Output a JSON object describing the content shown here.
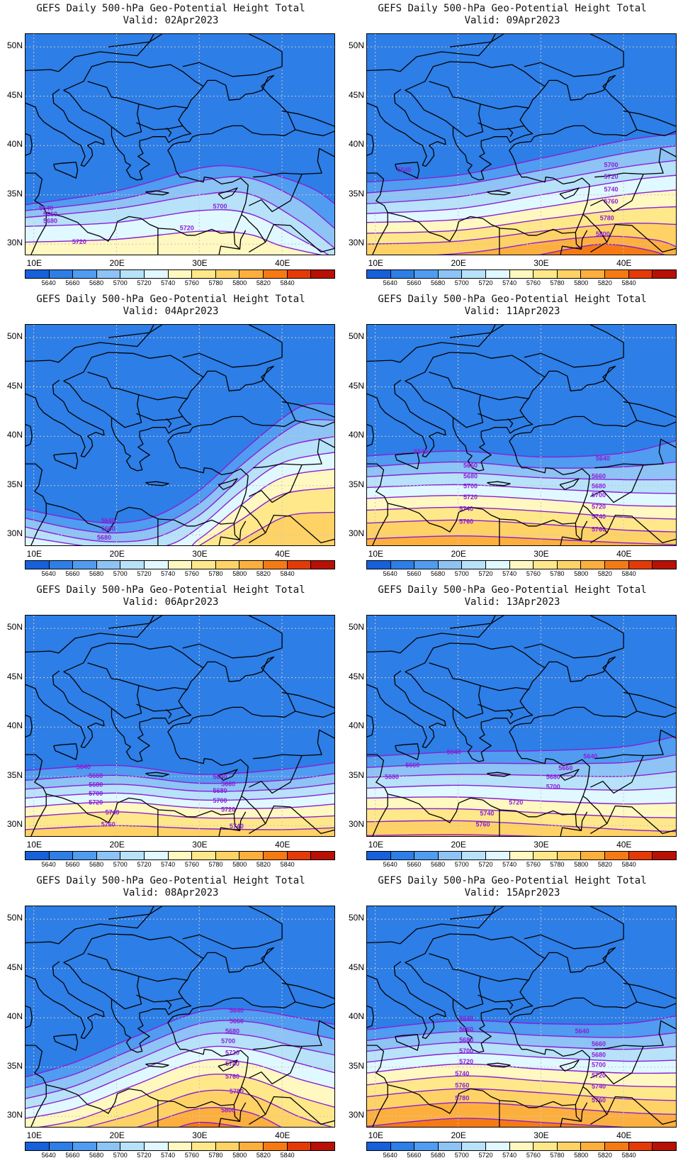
{
  "title_line1": "GEFS Daily 500-hPa Geo-Potential Height Total",
  "y_ticks": [
    "50N",
    "45N",
    "40N",
    "35N",
    "30N"
  ],
  "x_ticks": [
    "10E",
    "20E",
    "30E",
    "40E"
  ],
  "colorbar": {
    "colors": [
      "#1660d9",
      "#2d7ee6",
      "#4f9cf0",
      "#8dc3f5",
      "#b7e2fa",
      "#e0f8ff",
      "#fff8c0",
      "#ffe88a",
      "#ffd266",
      "#fdaf3e",
      "#f67a14",
      "#e33a08",
      "#b81004"
    ],
    "labels": [
      "5640",
      "5660",
      "5680",
      "5700",
      "5720",
      "5740",
      "5760",
      "5780",
      "5800",
      "5820",
      "5840"
    ]
  },
  "panels": [
    {
      "id": "p1",
      "valid": "Valid: 02Apr2023",
      "col": 0,
      "row": 0,
      "contours": [
        {
          "value": 5640,
          "y": [
            0,
            0,
            0,
            0,
            0,
            0,
            0,
            0,
            0
          ]
        },
        {
          "value": 5660,
          "y": [
            0,
            0,
            0,
            0,
            0,
            0,
            0,
            0,
            0
          ]
        }
      ],
      "labels": [
        {
          "t": "5640",
          "lon": 11.5,
          "lat": 33.6
        },
        {
          "t": "5660",
          "lon": 12.0,
          "lat": 33.0
        },
        {
          "t": "5680",
          "lon": 12.0,
          "lat": 32.3
        },
        {
          "t": "5720",
          "lon": 15.5,
          "lat": 30.2
        },
        {
          "t": "5700",
          "lon": 32.5,
          "lat": 33.8
        },
        {
          "t": "5720",
          "lon": 28.5,
          "lat": 31.6
        }
      ],
      "lines": [
        [
          10,
          33.8,
          20,
          35,
          30,
          37.3,
          35,
          37.6,
          40,
          36,
          44,
          34
        ],
        [
          10,
          33.2,
          20,
          34.3,
          30,
          36,
          36,
          36.5,
          42,
          34,
          44,
          32
        ],
        [
          10,
          32.6,
          20,
          33.4,
          30,
          34.8,
          36,
          35,
          42,
          32,
          44,
          30.5
        ],
        [
          10,
          31.8,
          20,
          32.2,
          30,
          33.3,
          36,
          33,
          42,
          30.5
        ],
        [
          10,
          30.5,
          20,
          30.7,
          30,
          31.4,
          36,
          31.2,
          40,
          29.5
        ],
        [
          10,
          29.3,
          20,
          29.4,
          30,
          29.7,
          36,
          29.5
        ]
      ],
      "fills": [
        [
          5700,
          10,
          32.6,
          20,
          33.4,
          30,
          34.8,
          36,
          35,
          42,
          32,
          44,
          30.5
        ],
        [
          5720,
          10,
          31.8,
          20,
          32.2,
          30,
          33.3,
          36,
          33,
          42,
          30.5,
          44,
          29
        ],
        [
          5740,
          10,
          29.3,
          20,
          29.4,
          30,
          29.7,
          36,
          29.5,
          44,
          28.5
        ]
      ]
    },
    {
      "id": "p2",
      "valid": "Valid: 09Apr2023",
      "col": 1,
      "row": 0,
      "labels": [
        {
          "t": "5640",
          "lon": 13.5,
          "lat": 37.5
        },
        {
          "t": "5700",
          "lon": 38.5,
          "lat": 38.0
        },
        {
          "t": "5720",
          "lon": 38.5,
          "lat": 36.8
        },
        {
          "t": "5740",
          "lon": 38.5,
          "lat": 35.5
        },
        {
          "t": "5760",
          "lon": 38.5,
          "lat": 34.3
        },
        {
          "t": "5780",
          "lon": 38.0,
          "lat": 32.6
        },
        {
          "t": "5800",
          "lon": 37.5,
          "lat": 31.0
        }
      ]
    },
    {
      "id": "p3",
      "valid": "Valid: 04Apr2023",
      "col": 0,
      "row": 1,
      "labels": [
        {
          "t": "5640",
          "lon": 19.0,
          "lat": 31.4
        },
        {
          "t": "5660",
          "lon": 19.0,
          "lat": 30.6
        },
        {
          "t": "5680",
          "lon": 18.5,
          "lat": 29.7
        }
      ]
    },
    {
      "id": "p4",
      "valid": "Valid: 11Apr2023",
      "col": 1,
      "row": 1,
      "labels": [
        {
          "t": "5640",
          "lon": 15.5,
          "lat": 38.4
        },
        {
          "t": "5640",
          "lon": 37.5,
          "lat": 37.7
        },
        {
          "t": "5660",
          "lon": 21.5,
          "lat": 37.0
        },
        {
          "t": "5680",
          "lon": 21.5,
          "lat": 35.9
        },
        {
          "t": "5700",
          "lon": 21.5,
          "lat": 34.9
        },
        {
          "t": "5720",
          "lon": 21.5,
          "lat": 33.8
        },
        {
          "t": "5740",
          "lon": 21.0,
          "lat": 32.6
        },
        {
          "t": "5760",
          "lon": 21.0,
          "lat": 31.3
        },
        {
          "t": "5660",
          "lon": 37.0,
          "lat": 35.9
        },
        {
          "t": "5680",
          "lon": 37.0,
          "lat": 34.9
        },
        {
          "t": "5700",
          "lon": 37.0,
          "lat": 34.0
        },
        {
          "t": "5720",
          "lon": 37.0,
          "lat": 32.8
        },
        {
          "t": "5740",
          "lon": 37.0,
          "lat": 31.8
        },
        {
          "t": "5760",
          "lon": 37.0,
          "lat": 30.5
        }
      ]
    },
    {
      "id": "p5",
      "valid": "Valid: 06Apr2023",
      "col": 0,
      "row": 2,
      "labels": [
        {
          "t": "5640",
          "lon": 16.0,
          "lat": 35.9
        },
        {
          "t": "5660",
          "lon": 17.5,
          "lat": 35.0
        },
        {
          "t": "5680",
          "lon": 17.5,
          "lat": 34.1
        },
        {
          "t": "5700",
          "lon": 17.5,
          "lat": 33.2
        },
        {
          "t": "5720",
          "lon": 17.5,
          "lat": 32.3
        },
        {
          "t": "5740",
          "lon": 19.5,
          "lat": 31.3
        },
        {
          "t": "5760",
          "lon": 19.0,
          "lat": 30.1
        },
        {
          "t": "5640",
          "lon": 32.5,
          "lat": 34.9
        },
        {
          "t": "5660",
          "lon": 33.5,
          "lat": 34.2
        },
        {
          "t": "5680",
          "lon": 32.5,
          "lat": 33.5
        },
        {
          "t": "5700",
          "lon": 32.5,
          "lat": 32.5
        },
        {
          "t": "5720",
          "lon": 33.5,
          "lat": 31.6
        },
        {
          "t": "5740",
          "lon": 34.5,
          "lat": 29.9
        }
      ]
    },
    {
      "id": "p6",
      "valid": "Valid: 13Apr2023",
      "col": 1,
      "row": 2,
      "labels": [
        {
          "t": "5640",
          "lon": 19.5,
          "lat": 37.4
        },
        {
          "t": "5660",
          "lon": 14.5,
          "lat": 36.1
        },
        {
          "t": "5660",
          "lon": 33.0,
          "lat": 35.8
        },
        {
          "t": "5680",
          "lon": 12.0,
          "lat": 34.9
        },
        {
          "t": "5680",
          "lon": 31.5,
          "lat": 34.9
        },
        {
          "t": "5700",
          "lon": 31.5,
          "lat": 33.9
        },
        {
          "t": "5720",
          "lon": 27.0,
          "lat": 32.3
        },
        {
          "t": "5740",
          "lon": 23.5,
          "lat": 31.2
        },
        {
          "t": "5760",
          "lon": 23.0,
          "lat": 30.1
        },
        {
          "t": "5640",
          "lon": 36.0,
          "lat": 37.0
        }
      ]
    },
    {
      "id": "p7",
      "valid": "Valid: 08Apr2023",
      "col": 0,
      "row": 3,
      "labels": [
        {
          "t": "5640",
          "lon": 34.5,
          "lat": 40.7
        },
        {
          "t": "5660",
          "lon": 34.5,
          "lat": 39.6
        },
        {
          "t": "5680",
          "lon": 34.0,
          "lat": 38.6
        },
        {
          "t": "5700",
          "lon": 33.5,
          "lat": 37.6
        },
        {
          "t": "5720",
          "lon": 34.0,
          "lat": 36.4
        },
        {
          "t": "5740",
          "lon": 34.0,
          "lat": 35.3
        },
        {
          "t": "5760",
          "lon": 34.0,
          "lat": 34.0
        },
        {
          "t": "5780",
          "lon": 34.5,
          "lat": 32.5
        },
        {
          "t": "5800",
          "lon": 33.5,
          "lat": 30.6
        }
      ]
    },
    {
      "id": "p8",
      "valid": "Valid: 15Apr2023",
      "col": 1,
      "row": 3,
      "labels": [
        {
          "t": "5640",
          "lon": 21.0,
          "lat": 39.9
        },
        {
          "t": "5660",
          "lon": 21.0,
          "lat": 38.8
        },
        {
          "t": "5680",
          "lon": 21.0,
          "lat": 37.7
        },
        {
          "t": "5700",
          "lon": 21.0,
          "lat": 36.6
        },
        {
          "t": "5720",
          "lon": 21.0,
          "lat": 35.5
        },
        {
          "t": "5740",
          "lon": 20.5,
          "lat": 34.3
        },
        {
          "t": "5760",
          "lon": 20.5,
          "lat": 33.1
        },
        {
          "t": "5780",
          "lon": 20.5,
          "lat": 31.8
        },
        {
          "t": "5640",
          "lon": 35.0,
          "lat": 38.6
        },
        {
          "t": "5660",
          "lon": 37.0,
          "lat": 37.3
        },
        {
          "t": "5680",
          "lon": 37.0,
          "lat": 36.2
        },
        {
          "t": "5700",
          "lon": 37.0,
          "lat": 35.2
        },
        {
          "t": "5720",
          "lon": 37.0,
          "lat": 34.1
        },
        {
          "t": "5740",
          "lon": 37.0,
          "lat": 33.0
        },
        {
          "t": "5760",
          "lon": 37.0,
          "lat": 31.6
        }
      ]
    }
  ]
}
